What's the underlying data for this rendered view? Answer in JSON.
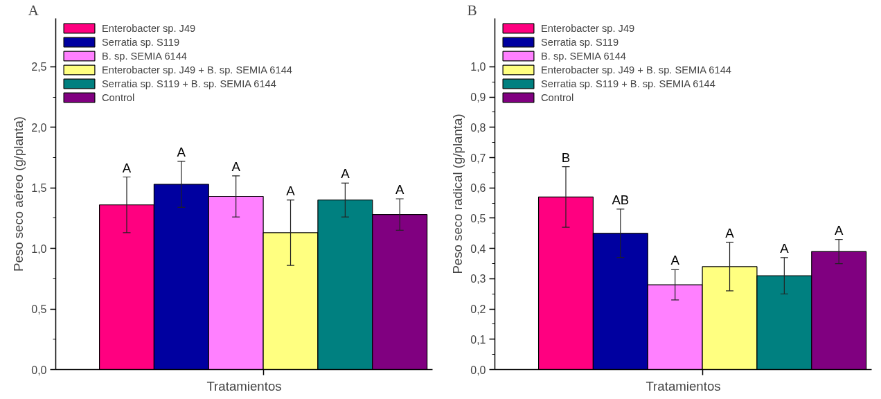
{
  "chart_data": [
    {
      "type": "bar",
      "title": "A",
      "xlabel": "Tratamientos",
      "ylabel": "Peso seco aéreo (g/planta)",
      "categories": [
        null
      ],
      "legend": "top left",
      "grid": false,
      "tick_labels": "y",
      "ylim": [
        0,
        2.9
      ],
      "yticks": [
        {
          "value": 0,
          "label": "0,0"
        },
        {
          "value": 0.5,
          "label": "0,5"
        },
        {
          "value": 1,
          "label": "1,0"
        },
        {
          "value": 1.5,
          "label": "1,5"
        },
        {
          "value": 2,
          "label": "2,0"
        },
        {
          "value": 2.5,
          "label": "2,5"
        }
      ],
      "series": [
        {
          "name": "Enterobacter sp. J49",
          "color": "#ff0080",
          "values": [
            1.36
          ],
          "errors": [
            [
              1.13,
              1.59
            ]
          ],
          "value_labels": [
            "A"
          ]
        },
        {
          "name": "Serratia sp. S119",
          "color": "#0000a0",
          "values": [
            1.53
          ],
          "errors": [
            [
              1.34,
              1.72
            ]
          ],
          "value_labels": [
            "A"
          ]
        },
        {
          "name": "B. sp. SEMIA 6144",
          "color": "#ff80ff",
          "values": [
            1.43
          ],
          "errors": [
            [
              1.26,
              1.6
            ]
          ],
          "value_labels": [
            "A"
          ]
        },
        {
          "name": "Enterobacter sp. J49 + B. sp. SEMIA 6144",
          "color": "#ffff80",
          "values": [
            1.13
          ],
          "errors": [
            [
              0.86,
              1.4
            ]
          ],
          "value_labels": [
            "A"
          ]
        },
        {
          "name": "Serratia sp. S119 + B. sp. SEMIA 6144",
          "color": "#008080",
          "values": [
            1.4
          ],
          "errors": [
            [
              1.26,
              1.54
            ]
          ],
          "value_labels": [
            "A"
          ]
        },
        {
          "name": "Control",
          "color": "#800080",
          "values": [
            1.28
          ],
          "errors": [
            [
              1.15,
              1.41
            ]
          ],
          "value_labels": [
            "A"
          ]
        }
      ]
    },
    {
      "type": "bar",
      "title": "B",
      "xlabel": "Tratamientos",
      "ylabel": "Peso seco radical (g/planta)",
      "categories": [
        null
      ],
      "legend": "top left",
      "grid": false,
      "tick_labels": "y",
      "ylim": [
        0,
        1.16
      ],
      "yticks": [
        {
          "value": 0,
          "label": "0,0"
        },
        {
          "value": 0.1,
          "label": "0,1"
        },
        {
          "value": 0.2,
          "label": "0,2"
        },
        {
          "value": 0.3,
          "label": "0,3"
        },
        {
          "value": 0.4,
          "label": "0,4"
        },
        {
          "value": 0.5,
          "label": "0,5"
        },
        {
          "value": 0.6,
          "label": "0,6"
        },
        {
          "value": 0.7,
          "label": "0,7"
        },
        {
          "value": 0.8,
          "label": "0,8"
        },
        {
          "value": 0.9,
          "label": "0,9"
        },
        {
          "value": 1,
          "label": "1,0"
        }
      ],
      "series": [
        {
          "name": "Enterobacter sp. J49",
          "color": "#ff0080",
          "values": [
            0.57
          ],
          "errors": [
            [
              0.47,
              0.67
            ]
          ],
          "value_labels": [
            "B"
          ]
        },
        {
          "name": "Serratia sp. S119",
          "color": "#0000a0",
          "values": [
            0.45
          ],
          "errors": [
            [
              0.37,
              0.53
            ]
          ],
          "value_labels": [
            "AB"
          ]
        },
        {
          "name": "B. sp. SEMIA 6144",
          "color": "#ff80ff",
          "values": [
            0.28
          ],
          "errors": [
            [
              0.23,
              0.33
            ]
          ],
          "value_labels": [
            "A"
          ]
        },
        {
          "name": "Enterobacter sp. J49 + B. sp. SEMIA 6144",
          "color": "#ffff80",
          "values": [
            0.34
          ],
          "errors": [
            [
              0.26,
              0.42
            ]
          ],
          "value_labels": [
            "A"
          ]
        },
        {
          "name": "Serratia sp. S119 + B. sp. SEMIA 6144",
          "color": "#008080",
          "values": [
            0.31
          ],
          "errors": [
            [
              0.25,
              0.37
            ]
          ],
          "value_labels": [
            "A"
          ]
        },
        {
          "name": "Control",
          "color": "#800080",
          "values": [
            0.39
          ],
          "errors": [
            [
              0.35,
              0.43
            ]
          ],
          "value_labels": [
            "A"
          ]
        }
      ]
    }
  ]
}
